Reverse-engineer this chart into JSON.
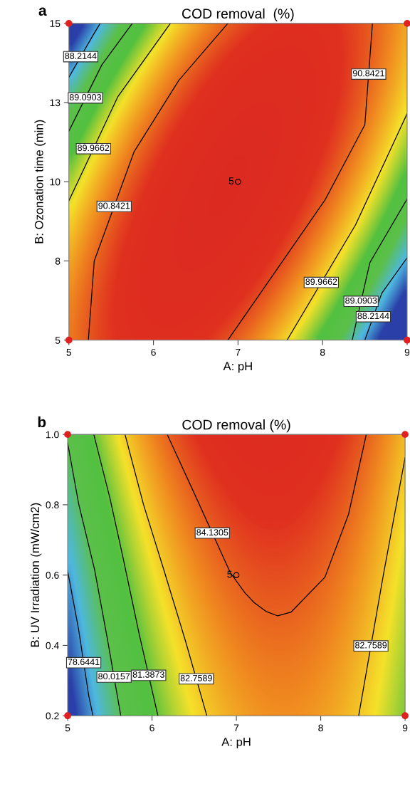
{
  "chart_data": [
    {
      "type": "line",
      "title": "COD removal  (%)",
      "xlabel": "A: pH",
      "ylabel": "B: Ozonation time (min)",
      "annotations": [
        "a",
        {
          "text": "5",
          "x": 7,
          "y": 10
        }
      ],
      "xlim": [
        5,
        9
      ],
      "xticks": [
        5,
        6,
        7,
        8,
        9
      ],
      "ylim": [
        5,
        15
      ],
      "yticks": [
        5,
        {
          "value": 7.5,
          "label": "8"
        },
        10,
        {
          "value": 12.5,
          "label": "13"
        },
        15
      ],
      "grid": false,
      "legend": false,
      "line_style": "solid",
      "marker": "none",
      "series": [
        {
          "name": "88.2144",
          "color": "#000000",
          "x": [
            5.37,
            5.28,
            5.0
          ],
          "values": [
            15,
            14.6,
            13.3
          ]
        },
        {
          "name": "88.2144",
          "color": "#000000",
          "x": [
            9,
            8.7,
            8.5
          ],
          "values": [
            7.6,
            6.48,
            5
          ]
        },
        {
          "name": "89.0903",
          "color": "#000000",
          "x": [
            5.75,
            5.39,
            5.0
          ],
          "values": [
            15,
            13.69,
            11.6
          ]
        },
        {
          "name": "89.0903",
          "color": "#000000",
          "x": [
            9,
            8.56,
            8.35
          ],
          "values": [
            9.46,
            7.45,
            5
          ]
        },
        {
          "name": "89.9662",
          "color": "#000000",
          "x": [
            6.2,
            5.58,
            5.0
          ],
          "values": [
            15,
            12.69,
            9.4
          ]
        },
        {
          "name": "89.9662",
          "color": "#000000",
          "x": [
            9,
            8.39,
            7.58
          ],
          "values": [
            12.15,
            8.64,
            5
          ]
        },
        {
          "name": "90.8421",
          "color": "#000000",
          "x": [
            6.88,
            6.3,
            5.77,
            5.3,
            5.23
          ],
          "values": [
            15,
            13.2,
            10.94,
            7.5,
            5
          ]
        },
        {
          "name": "90.8421",
          "color": "#000000",
          "x": [
            8.59,
            8.5,
            8.03,
            7.4,
            6.88
          ],
          "values": [
            15,
            11.8,
            9.43,
            7.0,
            5
          ]
        },
        {
          "type": "scatter",
          "color": "#e02020",
          "marker": "circle",
          "x": [
            5,
            5,
            9,
            9
          ],
          "values": [
            5,
            15,
            5,
            15
          ]
        },
        {
          "type": "scatter",
          "color": "#000000",
          "marker": "circle",
          "x": [
            7
          ],
          "values": [
            10
          ]
        }
      ]
    },
    {
      "type": "line",
      "title": "COD removal (%)",
      "xlabel": "A: pH",
      "ylabel": "B: UV Irradiation (mW/cm2)",
      "annotations": [
        "b",
        {
          "text": "5",
          "x": 7,
          "y": 0.6
        }
      ],
      "xlim": [
        5,
        9
      ],
      "xticks": [
        5,
        6,
        7,
        8,
        9
      ],
      "ylim": [
        0.2,
        1.0
      ],
      "yticks": [
        0.2,
        0.4,
        0.6,
        0.8,
        {
          "value": 1.0,
          "label": "1.0"
        }
      ],
      "grid": false,
      "legend": false,
      "line_style": "solid",
      "marker": "none",
      "series": [
        {
          "name": "78.6441",
          "color": "#000000",
          "x": [
            5,
            5.13,
            5.25,
            5.3
          ],
          "values": [
            0.612,
            0.445,
            0.257,
            0.2
          ]
        },
        {
          "name": "80.0157",
          "color": "#000000",
          "x": [
            5,
            5.13,
            5.32,
            5.47,
            5.63
          ],
          "values": [
            0.976,
            0.803,
            0.615,
            0.42,
            0.2
          ]
        },
        {
          "name": "81.3873",
          "color": "#000000",
          "x": [
            5.31,
            5.5,
            5.65,
            5.85,
            6.07
          ],
          "values": [
            1.0,
            0.82,
            0.657,
            0.43,
            0.2
          ]
        },
        {
          "name": "82.7589",
          "color": "#000000",
          "x": [
            5.68,
            5.9,
            6.14,
            6.4,
            6.65
          ],
          "values": [
            1.0,
            0.8,
            0.615,
            0.41,
            0.2
          ]
        },
        {
          "name": "84.1305",
          "color": "#000000",
          "x": [
            6.18,
            6.5,
            6.93,
            7.1,
            7.21,
            7.35,
            7.49,
            7.65,
            8.05,
            8.33,
            8.54
          ],
          "values": [
            1.0,
            0.833,
            0.606,
            0.55,
            0.522,
            0.497,
            0.484,
            0.495,
            0.594,
            0.773,
            1.0
          ]
        },
        {
          "name": "82.7589",
          "color": "#000000",
          "x": [
            9,
            8.74,
            8.45
          ],
          "values": [
            0.934,
            0.597,
            0.2
          ]
        },
        {
          "type": "scatter",
          "color": "#e02020",
          "marker": "circle",
          "x": [
            5,
            5,
            9,
            9
          ],
          "values": [
            0.2,
            1.0,
            0.2,
            1.0
          ]
        },
        {
          "type": "scatter",
          "color": "#000000",
          "marker": "circle",
          "x": [
            7
          ],
          "values": [
            0.6
          ]
        }
      ]
    }
  ]
}
